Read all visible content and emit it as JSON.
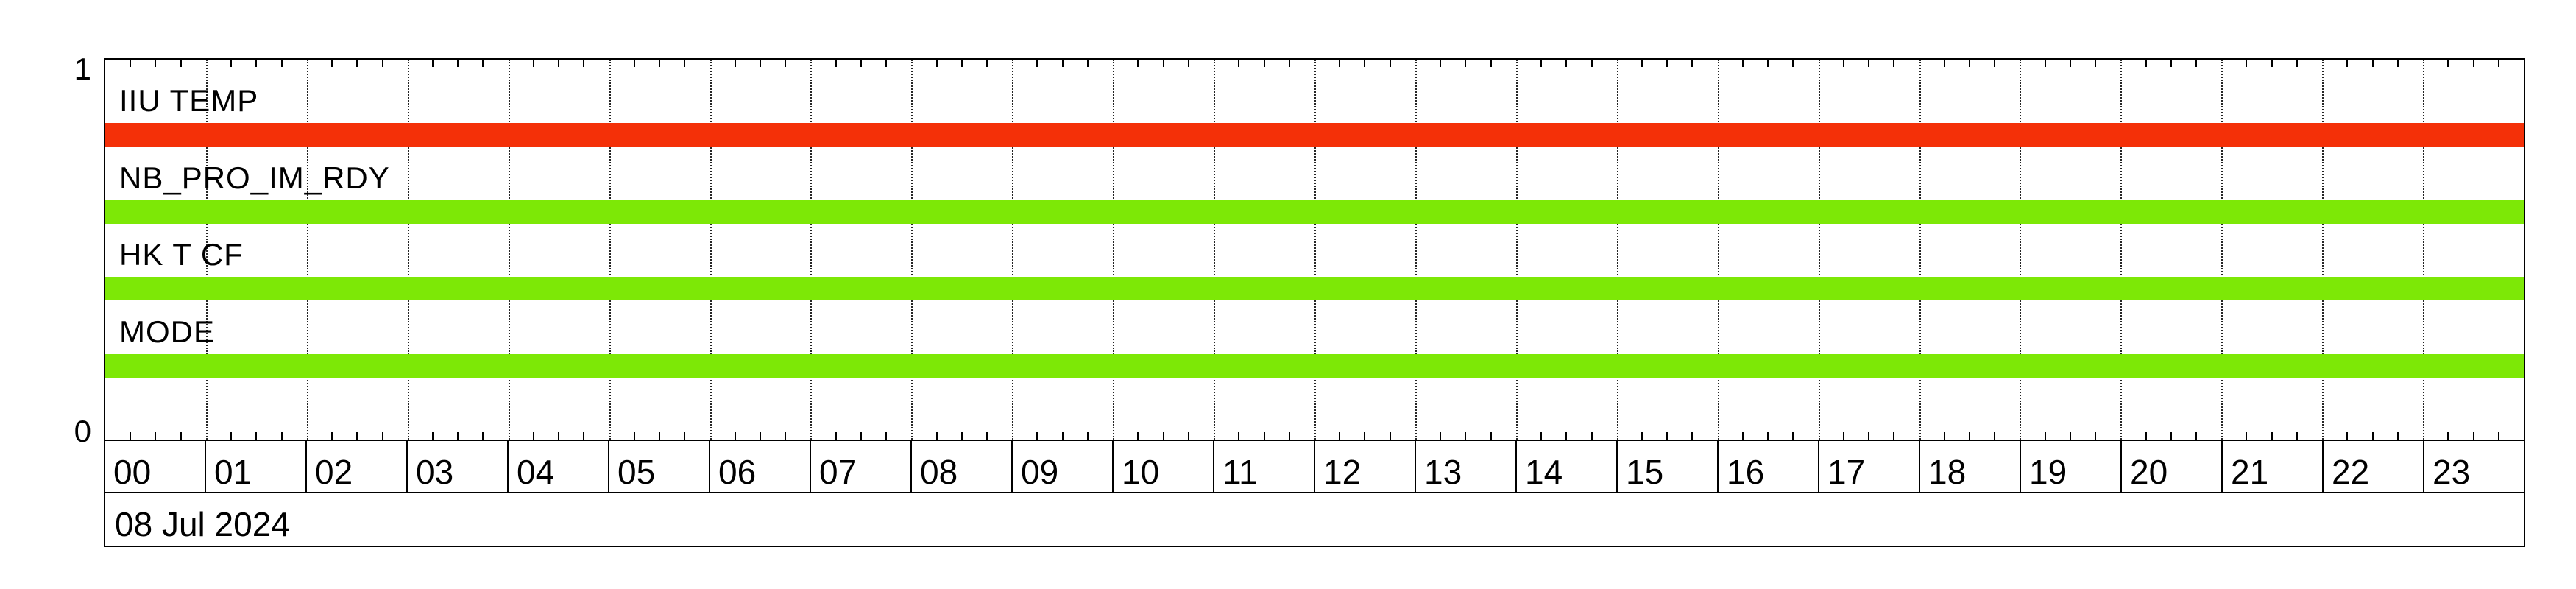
{
  "chart_data": {
    "type": "bar",
    "subtype": "horizontal-status-timeline",
    "title": "",
    "date_label": "08 Jul 2024",
    "y_axis": {
      "top_label": "1",
      "bottom_label": "0",
      "range": [
        0,
        1
      ]
    },
    "x_axis": {
      "unit": "hour",
      "start_hour": 0,
      "end_hour": 24,
      "minor_tick_minutes": 15,
      "gridlines": "dotted at every hour",
      "hour_labels": [
        "00",
        "01",
        "02",
        "03",
        "04",
        "05",
        "06",
        "07",
        "08",
        "09",
        "10",
        "11",
        "12",
        "13",
        "14",
        "15",
        "16",
        "17",
        "18",
        "19",
        "20",
        "21",
        "22",
        "23"
      ]
    },
    "series": [
      {
        "name": "IIU TEMP",
        "color": "#f43008",
        "spans": [
          {
            "start_hour": 0,
            "end_hour": 24,
            "value": 1
          }
        ]
      },
      {
        "name": "NB_PRO_IM_RDY",
        "color": "#7de806",
        "spans": [
          {
            "start_hour": 0,
            "end_hour": 24,
            "value": 1
          }
        ]
      },
      {
        "name": "HK T CF",
        "color": "#7de806",
        "spans": [
          {
            "start_hour": 0,
            "end_hour": 24,
            "value": 1
          }
        ]
      },
      {
        "name": "MODE",
        "color": "#7de806",
        "spans": [
          {
            "start_hour": 0,
            "end_hour": 24,
            "value": 1
          }
        ]
      }
    ],
    "colors": {
      "alert_red": "#f43008",
      "nominal_green": "#7de806",
      "grid": "#000000",
      "background": "#ffffff"
    },
    "legend_position": "none",
    "grid_on": true
  }
}
